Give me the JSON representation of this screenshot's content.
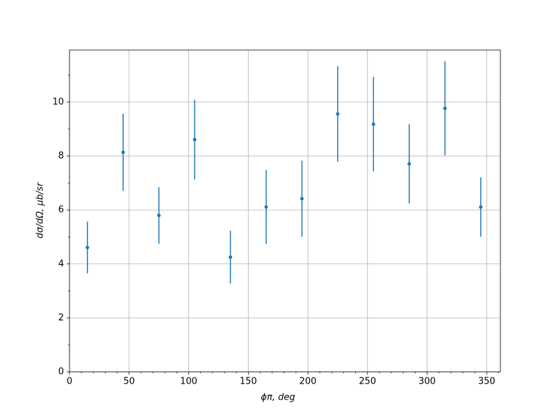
{
  "chart_data": {
    "type": "errorbar",
    "xlabel": "ϕπ, deg",
    "ylabel": "dσ/dΩ, μb/sr",
    "x": [
      15,
      45,
      75,
      105,
      135,
      165,
      195,
      225,
      255,
      285,
      315,
      345
    ],
    "values": [
      4.61,
      8.14,
      5.8,
      8.61,
      4.25,
      6.11,
      6.42,
      9.56,
      9.18,
      7.71,
      9.77,
      6.11
    ],
    "errors": [
      0.96,
      1.43,
      1.05,
      1.48,
      0.98,
      1.37,
      1.41,
      1.77,
      1.75,
      1.47,
      1.74,
      1.1
    ],
    "color": "#1f77b4",
    "xlim": [
      0,
      361.5
    ],
    "ylim": [
      0,
      11.93
    ],
    "xticks": [
      0,
      50,
      100,
      150,
      200,
      250,
      300,
      350
    ],
    "yticks": [
      0,
      2,
      4,
      6,
      8,
      10
    ],
    "xminorticks": [
      10,
      20,
      30,
      40,
      60,
      70,
      80,
      90,
      110,
      120,
      130,
      140,
      160,
      170,
      180,
      190,
      210,
      220,
      230,
      240,
      260,
      270,
      280,
      290,
      310,
      320,
      330,
      340,
      360
    ],
    "yminorticks": [
      1,
      3,
      5,
      7,
      9,
      11
    ],
    "grid": true
  }
}
